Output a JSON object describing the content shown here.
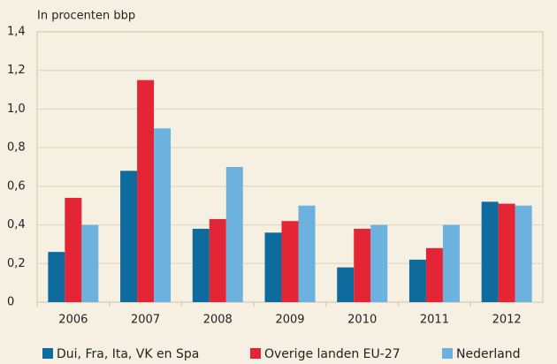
{
  "chart_data": {
    "type": "bar",
    "y_axis_label": "In procenten bbp",
    "categories": [
      "2006",
      "2007",
      "2008",
      "2009",
      "2010",
      "2011",
      "2012"
    ],
    "series": [
      {
        "name": "Dui, Fra, Ita, VK en Spa",
        "color": "#0f6a9e",
        "values": [
          0.26,
          0.68,
          0.38,
          0.36,
          0.18,
          0.22,
          0.52
        ]
      },
      {
        "name": "Overige landen EU-27",
        "color": "#e42535",
        "values": [
          0.54,
          1.15,
          0.43,
          0.42,
          0.38,
          0.28,
          0.51
        ]
      },
      {
        "name": "Nederland",
        "color": "#6db2de",
        "values": [
          0.4,
          0.9,
          0.7,
          0.5,
          0.4,
          0.4,
          0.5
        ]
      }
    ],
    "ylim": [
      0,
      1.4
    ],
    "yticks": [
      0,
      {
        "value": 0.2,
        "label": "0,2"
      },
      {
        "value": 0.4,
        "label": "0,4"
      },
      {
        "value": 0.6,
        "label": "0,6"
      },
      {
        "value": 0.8,
        "label": "0,8"
      },
      {
        "value": 1.0,
        "label": "1,0"
      },
      {
        "value": 1.2,
        "label": "1,2"
      },
      {
        "value": 1.4,
        "label": "1,4"
      }
    ],
    "grid": true
  }
}
